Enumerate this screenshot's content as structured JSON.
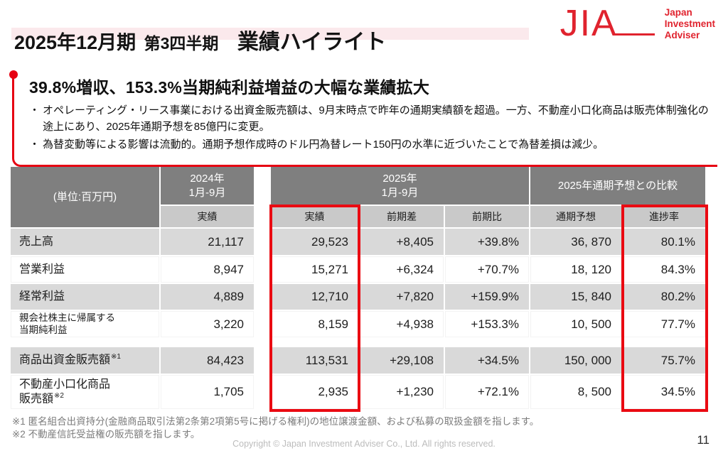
{
  "header": {
    "fiscal": "2025年12月期",
    "quarter": "第3四半期",
    "title": "業績ハイライト",
    "logo_acronym": "JIA",
    "logo_name": "Japan\nInvestment\nAdviser"
  },
  "highlight": {
    "heading": "39.8%増収、153.3%当期純利益増益の大幅な業績拡大",
    "bullets": [
      "オペレーティング・リース事業における出資金販売額は、9月末時点で昨年の通期実績額を超過。一方、不動産小口化商品は販売体制強化の途上にあり、2025年通期予想を85億円に変更。",
      "為替変動等による影響は流動的。通期予想作成時のドル円為替レート150円の水準に近づいたことで為替差損は減少。"
    ]
  },
  "table": {
    "unit_label": "(単位:百万円)",
    "col2024": "2024年\n1月-9月",
    "col2025": "2025年\n1月-9月",
    "col_forecast": "2025年通期予想との比較",
    "sub": {
      "a2024": "実績",
      "a2025": "実績",
      "diff": "前期差",
      "pct": "前期比",
      "forecast": "通期予想",
      "progress": "進捗率"
    },
    "rows": [
      {
        "label": "売上高",
        "v2024": "21,117",
        "v2025": "29,523",
        "diff": "+8,405",
        "pct": "+39.8%",
        "forecast": "36, 870",
        "progress": "80.1%"
      },
      {
        "label": "営業利益",
        "v2024": "8,947",
        "v2025": "15,271",
        "diff": "+6,324",
        "pct": "+70.7%",
        "forecast": "18, 120",
        "progress": "84.3%"
      },
      {
        "label": "経常利益",
        "v2024": "4,889",
        "v2025": "12,710",
        "diff": "+7,820",
        "pct": "+159.9%",
        "forecast": "15, 840",
        "progress": "80.2%"
      },
      {
        "label": "親会社株主に帰属する\n当期純利益",
        "v2024": "3,220",
        "v2025": "8,159",
        "diff": "+4,938",
        "pct": "+153.3%",
        "forecast": "10, 500",
        "progress": "77.7%"
      },
      {
        "label": "商品出資金販売額",
        "sup": "※1",
        "v2024": "84,423",
        "v2025": "113,531",
        "diff": "+29,108",
        "pct": "+34.5%",
        "forecast": "150, 000",
        "progress": "75.7%"
      },
      {
        "label": "不動産小口化商品\n販売額",
        "sup": "※2",
        "v2024": "1,705",
        "v2025": "2,935",
        "diff": "+1,230",
        "pct": "+72.1%",
        "forecast": "8, 500",
        "progress": "34.5%"
      }
    ]
  },
  "footnotes": [
    "※1 匿名組合出資持分(金融商品取引法第2条第2項第5号に掲げる権利)の地位譲渡金額、および私募の取扱金額を指します。",
    "※2 不動産信託受益権の販売額を指します。"
  ],
  "footer": {
    "copyright": "Copyright © Japan Investment Adviser Co., Ltd. All rights reserved.",
    "page": "11"
  },
  "colors": {
    "accent_red": "#e60012",
    "logo_red": "#e0232e",
    "header_gray": "#7f7f7f",
    "subheader_gray": "#c9c9c9",
    "row_stripe_gray": "#d9d9d9",
    "title_band_pink": "#fbe9ec"
  }
}
